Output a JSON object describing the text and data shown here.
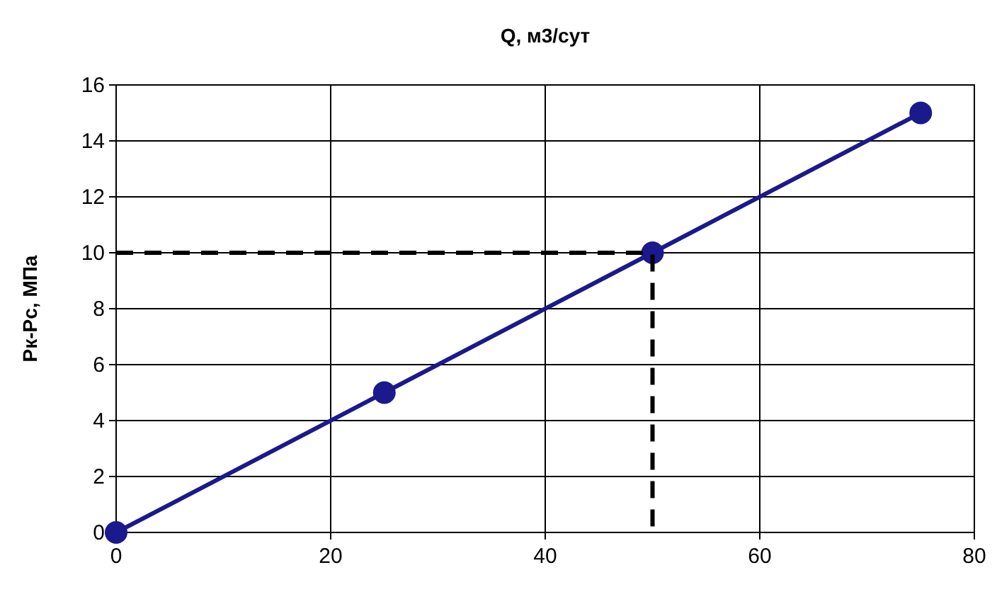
{
  "chart_data": {
    "type": "line",
    "xlabel": "Q, м3/сут",
    "ylabel": "Рк-Рс, МПа",
    "xlim": [
      0,
      80
    ],
    "xticks": [
      0,
      20,
      40,
      60,
      80
    ],
    "ylim": [
      0,
      16
    ],
    "yticks": [
      0,
      2,
      4,
      6,
      8,
      10,
      12,
      14,
      16
    ],
    "grid": true,
    "series": [
      {
        "color": "#1a1a8c",
        "x": [
          0,
          25,
          50,
          75
        ],
        "values": [
          0,
          5,
          10,
          15
        ],
        "marker": "circle",
        "line_style": "solid"
      },
      {
        "color": "#000000",
        "x": [
          0,
          50,
          50
        ],
        "values": [
          10,
          10,
          0
        ],
        "marker": "none",
        "line_style": "dashed"
      }
    ]
  }
}
